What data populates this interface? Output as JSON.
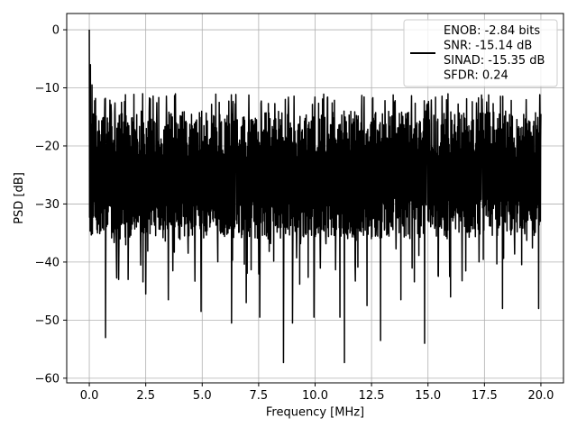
{
  "chart_data": {
    "type": "line",
    "xlabel": "Frequency [MHz]",
    "ylabel": "PSD [dB]",
    "xlim": [
      -1.0,
      21.0
    ],
    "ylim": [
      -60.8,
      2.8
    ],
    "grid": true,
    "legend_position": "top-right",
    "x_ticks": [
      0.0,
      2.5,
      5.0,
      7.5,
      10.0,
      12.5,
      15.0,
      17.5,
      20.0
    ],
    "x_tick_labels": [
      "0.0",
      "2.5",
      "5.0",
      "7.5",
      "10.0",
      "12.5",
      "15.0",
      "17.5",
      "20.0"
    ],
    "y_ticks": [
      0,
      -10,
      -20,
      -30,
      -40,
      -50,
      -60
    ],
    "y_tick_labels": [
      "0",
      "−10",
      "−20",
      "−30",
      "−40",
      "−50",
      "−60"
    ],
    "legend_lines": [
      "ENOB: -2.84 bits",
      "SNR: -15.14 dB",
      "SINAD: -15.35 dB",
      "SFDR: 0.24"
    ],
    "series": [
      {
        "color": "#000000",
        "x_start": 0.0,
        "x_end": 20.0,
        "num_points": 1600,
        "summary": {
          "peak": 0.0,
          "typical_upper": -14.0,
          "median": -24.0,
          "typical_lower": -36.0
        },
        "spikes": [
          {
            "x": 0.0,
            "y": 0.0
          },
          {
            "x": 0.05,
            "y": -6.0
          },
          {
            "x": 0.12,
            "y": -9.5
          },
          {
            "x": 0.18,
            "y": -14.5
          },
          {
            "x": 0.4,
            "y": -33.5
          },
          {
            "x": 0.72,
            "y": -53.0
          },
          {
            "x": 1.3,
            "y": -43.0
          },
          {
            "x": 1.72,
            "y": -43.0
          },
          {
            "x": 2.5,
            "y": -45.5
          },
          {
            "x": 3.5,
            "y": -46.5
          },
          {
            "x": 3.7,
            "y": -41.5
          },
          {
            "x": 4.95,
            "y": -48.5
          },
          {
            "x": 6.3,
            "y": -50.5
          },
          {
            "x": 6.95,
            "y": -47.0
          },
          {
            "x": 7.55,
            "y": -49.5
          },
          {
            "x": 8.6,
            "y": -57.3
          },
          {
            "x": 9.0,
            "y": -50.5
          },
          {
            "x": 9.95,
            "y": -49.5
          },
          {
            "x": 11.1,
            "y": -49.5
          },
          {
            "x": 11.3,
            "y": -57.3
          },
          {
            "x": 12.3,
            "y": -47.5
          },
          {
            "x": 12.9,
            "y": -53.5
          },
          {
            "x": 13.8,
            "y": -46.5
          },
          {
            "x": 14.85,
            "y": -54.0
          },
          {
            "x": 16.0,
            "y": -46.0
          },
          {
            "x": 18.3,
            "y": -48.0
          },
          {
            "x": 19.9,
            "y": -48.0
          },
          {
            "x": 14.9,
            "y": -14.0
          },
          {
            "x": 20.0,
            "y": -14.5
          }
        ]
      }
    ]
  }
}
